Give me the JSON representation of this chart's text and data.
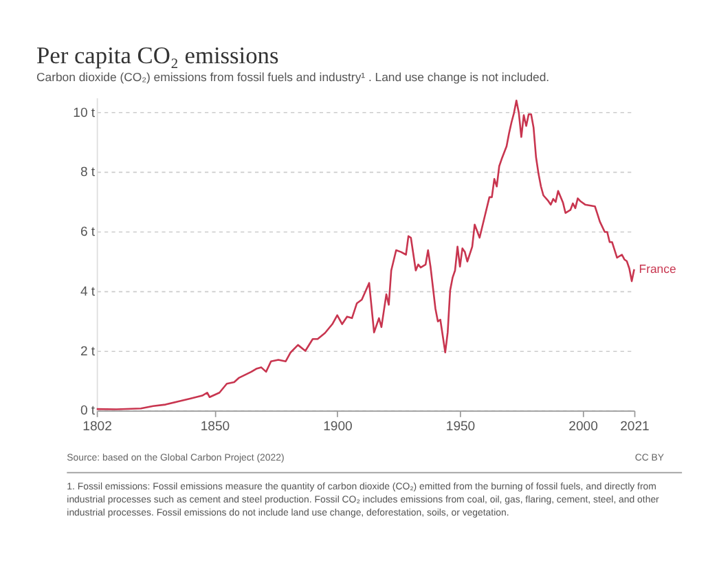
{
  "chart_data": {
    "type": "line",
    "title": "Per capita CO₂ emissions",
    "subtitle": "Carbon dioxide (CO₂) emissions from fossil fuels and industry¹ . Land use change is not included.",
    "x": [
      1802,
      1810,
      1820,
      1825,
      1830,
      1835,
      1840,
      1845,
      1847,
      1848,
      1852,
      1855,
      1858,
      1860,
      1865,
      1867,
      1869,
      1871,
      1873,
      1876,
      1879,
      1881,
      1884,
      1887,
      1890,
      1892,
      1895,
      1898,
      1900,
      1902,
      1904,
      1906,
      1908,
      1910,
      1913,
      1915,
      1917,
      1918,
      1920,
      1921,
      1922,
      1924,
      1926,
      1928,
      1929,
      1930,
      1932,
      1933,
      1934,
      1936,
      1937,
      1938,
      1940,
      1941,
      1942,
      1944,
      1945,
      1946,
      1947,
      1948,
      1949,
      1950,
      1951,
      1952,
      1953,
      1955,
      1956,
      1958,
      1960,
      1962,
      1963,
      1964,
      1965,
      1966,
      1967,
      1969,
      1970,
      1971,
      1972,
      1973,
      1974,
      1975,
      1976,
      1977,
      1978,
      1979,
      1980,
      1981,
      1982,
      1983,
      1984,
      1986,
      1987,
      1988,
      1989,
      1990,
      1992,
      1993,
      1995,
      1996,
      1997,
      1998,
      1999,
      2001,
      2003,
      2005,
      2006,
      2007,
      2009,
      2010,
      2011,
      2012,
      2014,
      2016,
      2017,
      2018,
      2019,
      2020,
      2021
    ],
    "series": [
      {
        "name": "France",
        "color": "#c8354f",
        "values": [
          0.05,
          0.04,
          0.07,
          0.15,
          0.2,
          0.3,
          0.4,
          0.5,
          0.6,
          0.45,
          0.6,
          0.9,
          0.95,
          1.1,
          1.3,
          1.4,
          1.45,
          1.3,
          1.65,
          1.7,
          1.65,
          1.95,
          2.2,
          2.0,
          2.4,
          2.4,
          2.6,
          2.9,
          3.2,
          2.9,
          3.15,
          3.1,
          3.6,
          3.72,
          4.28,
          2.62,
          3.1,
          2.8,
          3.9,
          3.55,
          4.7,
          5.38,
          5.32,
          5.23,
          5.85,
          5.8,
          4.7,
          4.9,
          4.8,
          4.9,
          5.38,
          4.83,
          3.42,
          2.99,
          3.05,
          1.95,
          2.62,
          4.03,
          4.46,
          4.7,
          5.5,
          4.83,
          5.44,
          5.32,
          5.0,
          5.5,
          6.24,
          5.8,
          6.48,
          7.16,
          7.16,
          7.77,
          7.52,
          8.2,
          8.44,
          8.87,
          9.3,
          9.67,
          9.98,
          10.4,
          9.98,
          9.18,
          9.91,
          9.55,
          9.94,
          9.94,
          9.49,
          8.5,
          7.95,
          7.52,
          7.22,
          7.03,
          6.91,
          7.1,
          7.0,
          7.37,
          6.97,
          6.63,
          6.73,
          6.95,
          6.79,
          7.12,
          7.03,
          6.91,
          6.88,
          6.85,
          6.6,
          6.34,
          5.99,
          5.99,
          5.65,
          5.65,
          5.13,
          5.23,
          5.07,
          5.01,
          4.77,
          4.34,
          4.74
        ]
      }
    ],
    "xlim": [
      1802,
      2021
    ],
    "xticks": [
      1802,
      1850,
      1900,
      1950,
      2000,
      2021
    ],
    "ylim": [
      0,
      10.5
    ],
    "yticks": [
      {
        "value": 0,
        "label": "0 t"
      },
      {
        "value": 2,
        "label": "2 t"
      },
      {
        "value": 4,
        "label": "4 t"
      },
      {
        "value": 6,
        "label": "6 t"
      },
      {
        "value": 8,
        "label": "8 t"
      },
      {
        "value": 10,
        "label": "10 t"
      }
    ],
    "grid": "y",
    "legend": false,
    "marker": "none",
    "line_style": "solid",
    "annotations": [
      "Source: based on the Global Carbon Project (2022)",
      "CC BY",
      "1. Fossil emissions: Fossil emissions measure the quantity of carbon dioxide (CO₂) emitted from the burning of fossil fuels, and directly from industrial processes such as cement and steel production. Fossil CO₂ includes emissions from coal, oil, gas, flaring, cement, steel, and other industrial processes. Fossil emissions do not include land use change, deforestation, soils, or vegetation."
    ]
  }
}
